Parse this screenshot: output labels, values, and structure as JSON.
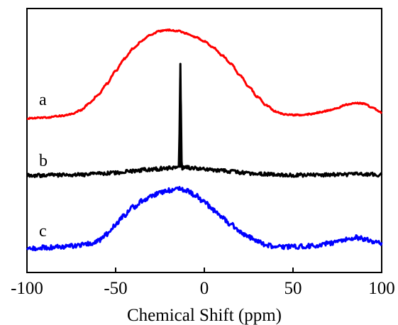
{
  "chart_data": {
    "type": "line",
    "xlabel": "Chemical Shift (ppm)",
    "ylabel": "",
    "xlim": [
      -100,
      100
    ],
    "xticks": [
      -100,
      -50,
      0,
      50,
      100
    ],
    "grid": false,
    "legend": "none",
    "series": [
      {
        "name": "a",
        "color": "#ff0000",
        "noise": "low",
        "points": [
          [
            -100,
            0.05
          ],
          [
            -90,
            0.06
          ],
          [
            -80,
            0.08
          ],
          [
            -75,
            0.1
          ],
          [
            -70,
            0.14
          ],
          [
            -65,
            0.22
          ],
          [
            -60,
            0.32
          ],
          [
            -55,
            0.45
          ],
          [
            -50,
            0.6
          ],
          [
            -45,
            0.74
          ],
          [
            -40,
            0.86
          ],
          [
            -35,
            0.95
          ],
          [
            -30,
            1.02
          ],
          [
            -25,
            1.06
          ],
          [
            -20,
            1.07
          ],
          [
            -15,
            1.06
          ],
          [
            -10,
            1.03
          ],
          [
            -5,
            0.99
          ],
          [
            0,
            0.94
          ],
          [
            5,
            0.87
          ],
          [
            10,
            0.78
          ],
          [
            15,
            0.68
          ],
          [
            20,
            0.55
          ],
          [
            25,
            0.42
          ],
          [
            30,
            0.3
          ],
          [
            35,
            0.2
          ],
          [
            40,
            0.13
          ],
          [
            45,
            0.1
          ],
          [
            50,
            0.09
          ],
          [
            55,
            0.09
          ],
          [
            60,
            0.1
          ],
          [
            65,
            0.12
          ],
          [
            70,
            0.14
          ],
          [
            75,
            0.17
          ],
          [
            80,
            0.21
          ],
          [
            85,
            0.23
          ],
          [
            90,
            0.22
          ],
          [
            95,
            0.17
          ],
          [
            100,
            0.12
          ]
        ]
      },
      {
        "name": "b",
        "color": "#000000",
        "noise": "medium",
        "spike": {
          "x": -13.5,
          "y": 1.15
        },
        "points": [
          [
            -100,
            0.0
          ],
          [
            -90,
            0.0
          ],
          [
            -80,
            0.01
          ],
          [
            -70,
            0.02
          ],
          [
            -60,
            0.05
          ],
          [
            -50,
            0.1
          ],
          [
            -40,
            0.16
          ],
          [
            -30,
            0.22
          ],
          [
            -20,
            0.27
          ],
          [
            -15,
            0.28
          ],
          [
            -10,
            0.28
          ],
          [
            -5,
            0.26
          ],
          [
            0,
            0.23
          ],
          [
            5,
            0.2
          ],
          [
            10,
            0.17
          ],
          [
            20,
            0.11
          ],
          [
            30,
            0.06
          ],
          [
            40,
            0.03
          ],
          [
            50,
            0.01
          ],
          [
            60,
            0.01
          ],
          [
            70,
            0.02
          ],
          [
            80,
            0.03
          ],
          [
            90,
            0.04
          ],
          [
            100,
            0.02
          ]
        ]
      },
      {
        "name": "c",
        "color": "#0000ff",
        "noise": "high",
        "points": [
          [
            -100,
            0.0
          ],
          [
            -90,
            0.01
          ],
          [
            -80,
            0.02
          ],
          [
            -70,
            0.04
          ],
          [
            -65,
            0.06
          ],
          [
            -60,
            0.09
          ],
          [
            -55,
            0.18
          ],
          [
            -50,
            0.3
          ],
          [
            -45,
            0.42
          ],
          [
            -40,
            0.52
          ],
          [
            -35,
            0.6
          ],
          [
            -30,
            0.66
          ],
          [
            -25,
            0.7
          ],
          [
            -20,
            0.73
          ],
          [
            -15,
            0.75
          ],
          [
            -10,
            0.73
          ],
          [
            -5,
            0.67
          ],
          [
            0,
            0.58
          ],
          [
            5,
            0.48
          ],
          [
            10,
            0.38
          ],
          [
            15,
            0.3
          ],
          [
            20,
            0.21
          ],
          [
            25,
            0.14
          ],
          [
            30,
            0.08
          ],
          [
            35,
            0.04
          ],
          [
            40,
            0.02
          ],
          [
            50,
            0.02
          ],
          [
            60,
            0.03
          ],
          [
            70,
            0.06
          ],
          [
            80,
            0.11
          ],
          [
            85,
            0.14
          ],
          [
            90,
            0.12
          ],
          [
            95,
            0.08
          ],
          [
            100,
            0.06
          ]
        ]
      }
    ]
  }
}
